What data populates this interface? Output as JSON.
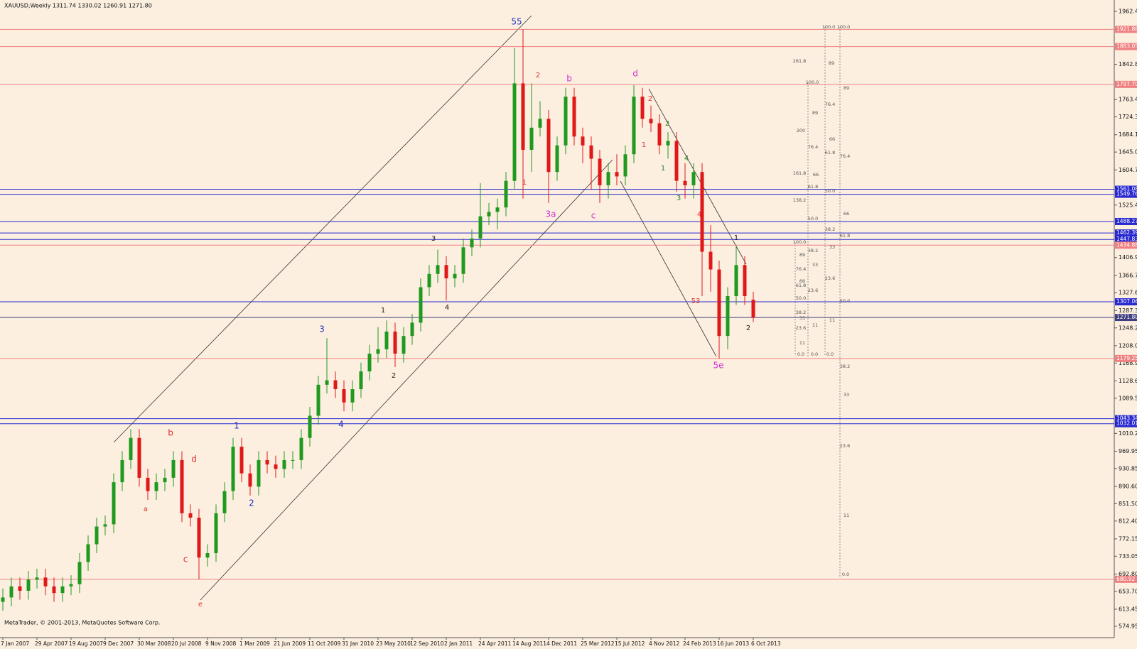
{
  "chart_data": {
    "type": "candlestick",
    "title": "XAUUSD,Weekly  1311.74 1330.02 1260.91 1271.80",
    "footer": "MetaTrader, © 2001-2013, MetaQuotes Software Corp.",
    "categories": [
      "7 Jan 2007",
      null,
      null,
      null,
      "29 Apr 2007",
      null,
      null,
      null,
      "19 Aug 2007",
      null,
      null,
      null,
      "9 Dec 2007",
      null,
      null,
      null,
      "30 Mar 2008",
      null,
      null,
      null,
      "20 Jul 2008",
      null,
      null,
      null,
      "9 Nov 2008",
      null,
      null,
      null,
      "1 Mar 2009",
      null,
      null,
      null,
      "21 Jun 2009",
      null,
      null,
      null,
      "11 Oct 2009",
      null,
      null,
      null,
      "31 Jan 2010",
      null,
      null,
      null,
      "23 May 2010",
      null,
      null,
      null,
      "12 Sep 2010",
      null,
      null,
      null,
      "2 Jan 2011",
      null,
      null,
      null,
      "24 Apr 2011",
      null,
      null,
      null,
      "14 Aug 2011",
      null,
      null,
      null,
      "4 Dec 2011",
      null,
      null,
      null,
      "25 Mar 2012",
      null,
      null,
      null,
      "15 Jul 2012",
      null,
      null,
      null,
      "4 Nov 2012",
      null,
      null,
      null,
      "24 Feb 2013",
      null,
      null,
      null,
      "16 Jun 2013",
      null,
      null,
      null,
      "6 Oct 2013"
    ],
    "ohlc": {
      "open": [
        630,
        640,
        665,
        655,
        680,
        685,
        665,
        650,
        665,
        670,
        720,
        760,
        800,
        805,
        900,
        950,
        1000,
        910,
        880,
        900,
        910,
        950,
        830,
        820,
        730,
        740,
        830,
        880,
        980,
        920,
        890,
        950,
        940,
        930,
        950,
        950,
        1000,
        1050,
        1120,
        1130,
        1110,
        1080,
        1110,
        1150,
        1190,
        1200,
        1240,
        1190,
        1230,
        1260,
        1340,
        1370,
        1390,
        1360,
        1370,
        1430,
        1450,
        1500,
        1510,
        1520,
        1580,
        1800,
        1650,
        1700,
        1720,
        1600,
        1660,
        1770,
        1680,
        1660,
        1630,
        1570,
        1600,
        1590,
        1640,
        1770,
        1720,
        1710,
        1660,
        1670,
        1580,
        1570,
        1600,
        1420,
        1380,
        1230,
        1320,
        1390,
        1311.74
      ],
      "high": [
        660,
        685,
        685,
        700,
        705,
        705,
        685,
        685,
        690,
        740,
        780,
        820,
        825,
        920,
        970,
        1020,
        1020,
        930,
        920,
        930,
        970,
        970,
        850,
        840,
        760,
        850,
        900,
        1000,
        1000,
        940,
        970,
        970,
        960,
        970,
        970,
        1020,
        1070,
        1140,
        1225,
        1150,
        1130,
        1130,
        1170,
        1210,
        1250,
        1265,
        1260,
        1250,
        1280,
        1360,
        1390,
        1425,
        1410,
        1390,
        1450,
        1470,
        1575,
        1530,
        1540,
        1600,
        1880,
        1921.88,
        1800,
        1760,
        1740,
        1680,
        1790,
        1790,
        1700,
        1680,
        1650,
        1620,
        1640,
        1660,
        1796,
        1790,
        1750,
        1730,
        1690,
        1690,
        1620,
        1620,
        1620,
        1480,
        1400,
        1340,
        1435,
        1410,
        1330.02
      ],
      "low": [
        610,
        620,
        635,
        635,
        660,
        645,
        630,
        630,
        645,
        650,
        700,
        740,
        780,
        785,
        880,
        930,
        890,
        860,
        860,
        880,
        890,
        810,
        800,
        680.92,
        710,
        720,
        810,
        860,
        900,
        870,
        870,
        920,
        910,
        910,
        930,
        930,
        980,
        1030,
        1100,
        1090,
        1060,
        1060,
        1090,
        1130,
        1170,
        1180,
        1160,
        1170,
        1210,
        1240,
        1320,
        1350,
        1310,
        1340,
        1350,
        1410,
        1430,
        1480,
        1470,
        1500,
        1560,
        1540,
        1600,
        1680,
        1530,
        1580,
        1640,
        1660,
        1620,
        1560,
        1530,
        1540,
        1570,
        1570,
        1620,
        1700,
        1690,
        1640,
        1630,
        1555,
        1540,
        1540,
        1320,
        1330,
        1179.25,
        1200,
        1300,
        1300,
        1260.91
      ],
      "close": [
        640,
        665,
        655,
        680,
        685,
        665,
        650,
        665,
        670,
        720,
        760,
        800,
        805,
        900,
        950,
        1000,
        910,
        880,
        900,
        910,
        950,
        830,
        820,
        730,
        740,
        830,
        880,
        980,
        920,
        890,
        950,
        940,
        930,
        950,
        950,
        1000,
        1050,
        1120,
        1130,
        1110,
        1080,
        1110,
        1150,
        1190,
        1200,
        1240,
        1190,
        1230,
        1260,
        1340,
        1370,
        1390,
        1360,
        1370,
        1430,
        1450,
        1500,
        1510,
        1520,
        1580,
        1800,
        1650,
        1700,
        1720,
        1600,
        1660,
        1770,
        1680,
        1660,
        1630,
        1570,
        1600,
        1590,
        1640,
        1770,
        1720,
        1710,
        1660,
        1670,
        1580,
        1570,
        1600,
        1420,
        1380,
        1230,
        1320,
        1390,
        1320,
        1271.8
      ]
    },
    "up_color": "#1f9a1f",
    "down_color": "#e01818",
    "ylim": [
      549.3,
      1988.1
    ],
    "yticks": [
      1962.45,
      1842.85,
      1763.45,
      1724.35,
      {
        "value": 1684.1,
        "label": "1684.10"
      },
      {
        "value": 1645,
        "label": "1645.00"
      },
      1604.75,
      {
        "value": 1525.4,
        "label": "1525.40"
      },
      1406.95,
      {
        "value": 1366.7,
        "label": "1366.70"
      },
      {
        "value": 1327.6,
        "label": "1327.60"
      },
      1287.35,
      1248.25,
      {
        "value": 1208,
        "label": "1208.00"
      },
      {
        "value": 1168.9,
        "label": "1168.90"
      },
      1128.65,
      1089.55,
      {
        "value": 1010.2,
        "label": "1010.20"
      },
      969.95,
      930.85,
      {
        "value": 890.6,
        "label": "890.60"
      },
      {
        "value": 851.5,
        "label": "851.50"
      },
      {
        "value": 812.4,
        "label": "812.40"
      },
      772.15,
      733.05,
      {
        "value": 692.8,
        "label": "692.80"
      },
      {
        "value": 653.7,
        "label": "653.70"
      },
      613.45,
      574.95
    ],
    "levels": [
      {
        "value": 1921.88,
        "color": "#f08080"
      },
      {
        "value": 1883.05,
        "color": "#f08080"
      },
      {
        "value": {
          "value": 1797.7,
          "label": "1797.70"
        },
        "color": "#f08080"
      },
      {
        "value": 1561.08,
        "color": "#2828d0"
      },
      {
        "value": 1549.76,
        "color": "#2828d0"
      },
      {
        "value": 1488.27,
        "color": "#2828d0"
      },
      {
        "value": 1462.39,
        "color": "#2828d0"
      },
      {
        "value": 1447.83,
        "color": "#2828d0"
      },
      {
        "value": 1434.88,
        "color": "#f08080"
      },
      {
        "value": 1307.06,
        "color": "#2828d0"
      },
      {
        "value": {
          "value": 1271.8,
          "label": "1271.80"
        },
        "color": "#404080"
      },
      {
        "value": 1179.25,
        "color": "#f08080"
      },
      {
        "value": 1043.34,
        "color": "#2828d0"
      },
      {
        "value": 1032.01,
        "color": "#2828d0"
      },
      {
        "value": 680.92,
        "color": "#f08080"
      }
    ],
    "annotations": [
      {
        "text": "55",
        "color": "#2030c0"
      },
      {
        "text": "2",
        "color": "#e03030"
      },
      {
        "text": "b",
        "color": "#d030d0"
      },
      {
        "text": "d",
        "color": "#d030d0"
      },
      {
        "text": "2",
        "color": "#e03030"
      },
      {
        "text": "1",
        "color": "#e03030"
      },
      {
        "text": "3a",
        "color": "#d030d0"
      },
      {
        "text": "c",
        "color": "#d030d0"
      },
      {
        "text": "1",
        "color": "#e03030"
      },
      {
        "text": "3",
        "color": "#202020"
      },
      {
        "text": "1",
        "color": "#202020"
      },
      {
        "text": "4",
        "color": "#202020"
      },
      {
        "text": "2",
        "color": "#202020"
      },
      {
        "text": "3",
        "color": "#2030c0"
      },
      {
        "text": "4",
        "color": "#2030c0"
      },
      {
        "text": "1",
        "color": "#2030c0"
      },
      {
        "text": "2",
        "color": "#2030c0"
      },
      {
        "text": "b",
        "color": "#e03030"
      },
      {
        "text": "d",
        "color": "#e03030"
      },
      {
        "text": "a",
        "color": "#e03030"
      },
      {
        "text": "c",
        "color": "#e03030"
      },
      {
        "text": "e",
        "color": "#e03030"
      },
      {
        "text": "4",
        "color": "#e03030"
      },
      {
        "text": "1",
        "color": "#202020"
      },
      {
        "text": "2",
        "color": "#202020"
      },
      {
        "text": "5e",
        "color": "#d030d0"
      },
      {
        "text": "53",
        "color": "#e03030"
      },
      {
        "text": "3",
        "color": "#2a7a2a"
      },
      {
        "text": "1",
        "color": "#2a7a2a"
      },
      {
        "text": "2",
        "color": "#2a7a2a"
      },
      {
        "text": "4",
        "color": "#2a7a2a"
      }
    ],
    "fib_labels": [
      "100.0",
      "100.0",
      "261.8",
      "89",
      "100.0",
      "89",
      "76.4",
      "89",
      "200",
      "66",
      "76.4",
      "61.8",
      "76.4",
      "161.8",
      "66",
      "61.8",
      "50.0",
      "138.2",
      "66",
      "50.0",
      "38.2",
      "61.8",
      "100.0",
      "33",
      "38.2",
      "89",
      "33",
      "76.4",
      "23.6",
      "66",
      "61.8",
      "23.6",
      "50.0",
      "50.0",
      "38.2",
      "33",
      "11",
      "11",
      "23.6",
      "11",
      "0.0",
      "0.0",
      "0.0",
      "38.2",
      "33",
      "23.6",
      "11",
      "0.0"
    ]
  }
}
